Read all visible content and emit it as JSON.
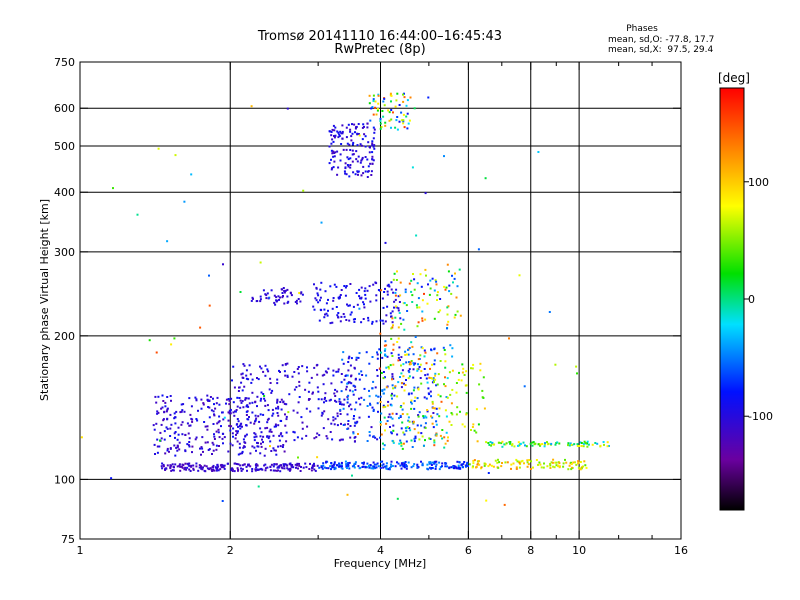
{
  "chart_data": {
    "type": "scatter",
    "title": "Tromsø 20141110 16:44:00–16:45:43",
    "subtitle": "RwPretec (8p)",
    "stats": {
      "heading": "Phases",
      "line_o": "mean, sd,O: -77.8, 17.7",
      "line_x": "mean, sd,X:  97.5, 29.4"
    },
    "xlabel": "Frequency [MHz]",
    "ylabel": "Stationary phase Virtual Height [km]",
    "xscale": "log",
    "yscale": "log",
    "xlim": [
      1,
      16
    ],
    "ylim": [
      75,
      750
    ],
    "x_ticks": [
      1,
      2,
      4,
      6,
      8,
      10,
      16
    ],
    "x_minor_ticks": [
      3,
      5,
      7,
      9,
      12,
      14
    ],
    "x_grid": [
      2,
      4,
      6,
      8,
      10
    ],
    "y_ticks": [
      75,
      100,
      200,
      300,
      400,
      500,
      600,
      750
    ],
    "y_grid": [
      100,
      200,
      300,
      400,
      500,
      600
    ],
    "grid": true,
    "colorbar": {
      "label": "[deg]",
      "min": -180,
      "max": 180,
      "ticks": [
        100,
        0,
        -100
      ],
      "placement": "right"
    },
    "clusters": [
      {
        "f": [
          1.45,
          3.0
        ],
        "h": [
          104,
          108
        ],
        "phase": [
          -125,
          -95
        ],
        "n": 220
      },
      {
        "f": [
          3.0,
          6.0
        ],
        "h": [
          105,
          109
        ],
        "phase": [
          -95,
          -40
        ],
        "n": 200
      },
      {
        "f": [
          6.0,
          10.5
        ],
        "h": [
          105,
          110
        ],
        "phase": [
          40,
          130
        ],
        "n": 110
      },
      {
        "f": [
          1.4,
          2.6
        ],
        "h": [
          112,
          150
        ],
        "phase": [
          -125,
          -85
        ],
        "n": 300
      },
      {
        "f": [
          2.0,
          3.6
        ],
        "h": [
          120,
          175
        ],
        "phase": [
          -120,
          -80
        ],
        "n": 260
      },
      {
        "f": [
          3.3,
          5.2
        ],
        "h": [
          120,
          190
        ],
        "phase": [
          -110,
          -40
        ],
        "n": 220
      },
      {
        "f": [
          4.0,
          5.6
        ],
        "h": [
          115,
          200
        ],
        "phase": [
          -60,
          150
        ],
        "n": 170
      },
      {
        "f": [
          5.0,
          6.5
        ],
        "h": [
          120,
          175
        ],
        "phase": [
          20,
          120
        ],
        "n": 60
      },
      {
        "f": [
          6.5,
          11.5
        ],
        "h": [
          117,
          120
        ],
        "phase": [
          -40,
          90
        ],
        "n": 90
      },
      {
        "f": [
          2.2,
          2.8
        ],
        "h": [
          232,
          252
        ],
        "phase": [
          -115,
          -95
        ],
        "n": 50
      },
      {
        "f": [
          2.9,
          4.4
        ],
        "h": [
          212,
          260
        ],
        "phase": [
          -110,
          -80
        ],
        "n": 130
      },
      {
        "f": [
          4.2,
          5.8
        ],
        "h": [
          205,
          280
        ],
        "phase": [
          -90,
          150
        ],
        "n": 90
      },
      {
        "f": [
          3.15,
          3.9
        ],
        "h": [
          430,
          560
        ],
        "phase": [
          -120,
          -80
        ],
        "n": 150
      },
      {
        "f": [
          3.8,
          4.6
        ],
        "h": [
          540,
          650
        ],
        "phase": [
          -100,
          160
        ],
        "n": 70
      },
      {
        "f": [
          1.0,
          10.5
        ],
        "h": [
          80,
          640
        ],
        "phase": [
          -120,
          160
        ],
        "n": 70
      }
    ],
    "seed": 20141110
  }
}
